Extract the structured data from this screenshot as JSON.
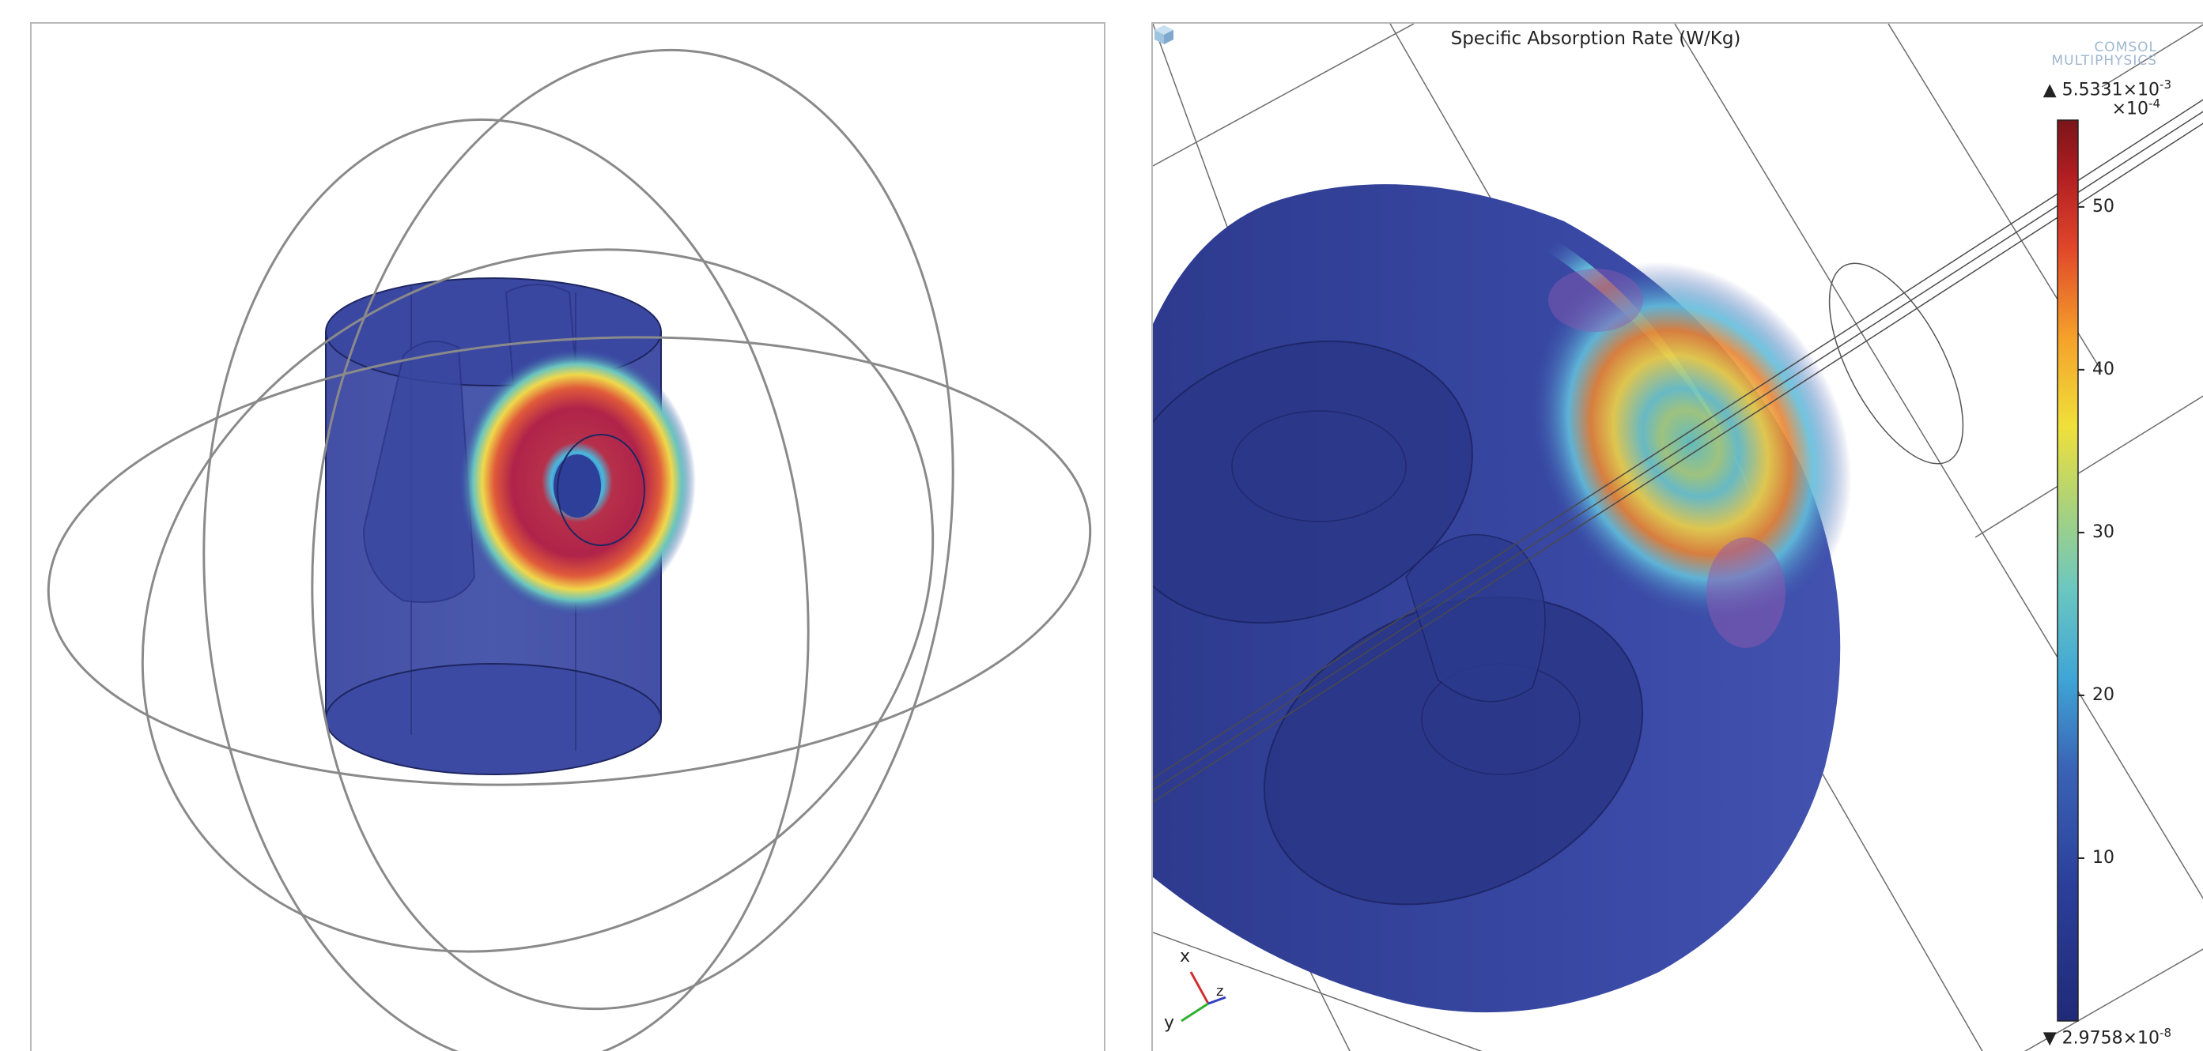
{
  "left_view": {},
  "right_view": {
    "title": "Specific Absorption Rate (W/Kg)",
    "logo": {
      "line1": "COMSOL",
      "line2": "MULTIPHYSICS"
    },
    "colorbar": {
      "max_mantissa": "5.5331",
      "max_exponent": "-3",
      "min_mantissa": "2.9758",
      "min_exponent": "-8",
      "scale_exponent": "-4",
      "times_base": "×10",
      "tick_labels": [
        "50",
        "40",
        "30",
        "20",
        "10"
      ],
      "tick_values": [
        50,
        40,
        30,
        20,
        10
      ],
      "range": [
        0.0003,
        55.331
      ],
      "colors": [
        "#202a78",
        "#2b3f9a",
        "#3a63b5",
        "#3fa5d6",
        "#6cc7c0",
        "#a9d27b",
        "#f0e03a",
        "#f5a02a",
        "#e0452a",
        "#b01d22",
        "#7a1518"
      ]
    },
    "axes_triad": {
      "x": "x",
      "y": "y",
      "z": "z"
    }
  }
}
